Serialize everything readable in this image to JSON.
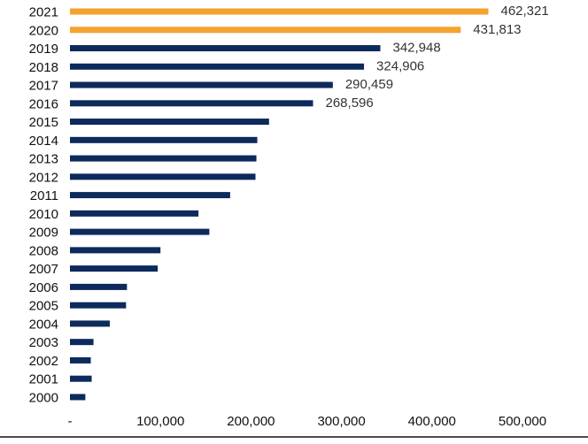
{
  "chart_data": {
    "type": "bar",
    "orientation": "horizontal",
    "categories": [
      "2021",
      "2020",
      "2019",
      "2018",
      "2017",
      "2016",
      "2015",
      "2014",
      "2013",
      "2012",
      "2011",
      "2010",
      "2009",
      "2008",
      "2007",
      "2006",
      "2005",
      "2004",
      "2003",
      "2002",
      "2001",
      "2000"
    ],
    "values": [
      462321,
      431813,
      342948,
      324906,
      290459,
      268596,
      220000,
      207000,
      206000,
      205000,
      177000,
      142000,
      154000,
      100000,
      97000,
      63000,
      62000,
      44000,
      26000,
      23000,
      24000,
      17000
    ],
    "data_labels": {
      "2021": "462,321",
      "2020": "431,813",
      "2019": "342,948",
      "2018": "324,906",
      "2017": "290,459",
      "2016": "268,596"
    },
    "highlight_categories": [
      "2021",
      "2020"
    ],
    "x_ticks": [
      "-",
      "100,000",
      "200,000",
      "300,000",
      "400,000",
      "500,000"
    ],
    "xlim": [
      0,
      500000
    ],
    "title": "",
    "xlabel": "",
    "ylabel": "",
    "grid": false,
    "colors": {
      "default": "#0d2a5c",
      "highlight": "#f6a22f",
      "axis": "#111111"
    }
  }
}
